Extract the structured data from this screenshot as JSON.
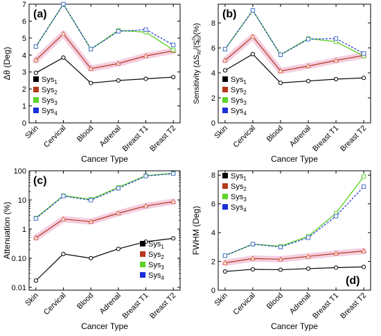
{
  "colors": {
    "sys1": "#000000",
    "sys2": "#b5391c",
    "sys3": "#5ed12b",
    "sys4": "#1a2fd8",
    "sys4_marker": "#4a6fd0",
    "sys2_marker": "#d86a4a",
    "glow": "#f2c6dc"
  },
  "chart_data": [
    {
      "type": "line",
      "panel_label": "(a)",
      "categories": [
        "Skin",
        "Cervical",
        "Blood",
        "Adrenal",
        "Breast T1",
        "Breast T2"
      ],
      "xlabel": "Cancer Type",
      "ylabel": "Δθ (Deg)",
      "ylim": [
        0,
        7
      ],
      "yticks": [
        "0",
        "1",
        "2",
        "3",
        "4",
        "5",
        "6",
        "7"
      ],
      "yscale": "linear",
      "legend_position": "bottom-left",
      "series": [
        {
          "name": "Sys",
          "sub": "1",
          "values": [
            2.95,
            3.85,
            2.35,
            2.5,
            2.6,
            2.7
          ]
        },
        {
          "name": "Sys",
          "sub": "2",
          "values": [
            3.7,
            5.25,
            3.2,
            3.5,
            3.95,
            4.25
          ]
        },
        {
          "name": "Sys",
          "sub": "3",
          "values": [
            4.5,
            7.0,
            4.35,
            5.45,
            5.35,
            4.3
          ]
        },
        {
          "name": "Sys",
          "sub": "4",
          "values": [
            4.5,
            7.0,
            4.35,
            5.4,
            5.5,
            4.6
          ]
        }
      ]
    },
    {
      "type": "line",
      "panel_label": "(b)",
      "categories": [
        "Skin",
        "Cervical",
        "Blood",
        "Adrenal",
        "Breast T1",
        "Breast T2"
      ],
      "xlabel": "Cancer Type",
      "ylabel": "Sensitivity (ΔS",
      "ylabel_sub": "RI",
      "ylabel_mid": "/(S",
      "ylabel_sup": "0",
      "ylabel_sub2": "RI",
      "ylabel_end": ")(%)",
      "ylim": [
        0,
        9.5
      ],
      "yticks": [
        "0",
        "2",
        "4",
        "6",
        "8"
      ],
      "ytick_values": [
        0,
        2,
        4,
        6,
        8
      ],
      "yscale": "linear",
      "legend_position": "bottom-left",
      "series": [
        {
          "name": "Sys",
          "sub": "1",
          "values": [
            4.2,
            5.5,
            3.2,
            3.35,
            3.5,
            3.6
          ]
        },
        {
          "name": "Sys",
          "sub": "2",
          "values": [
            5.0,
            6.9,
            4.15,
            4.55,
            5.0,
            5.4
          ]
        },
        {
          "name": "Sys",
          "sub": "3",
          "values": [
            5.9,
            9.0,
            5.45,
            6.75,
            6.5,
            5.35
          ]
        },
        {
          "name": "Sys",
          "sub": "4",
          "values": [
            5.9,
            9.0,
            5.45,
            6.7,
            6.75,
            5.55
          ]
        }
      ]
    },
    {
      "type": "line",
      "panel_label": "(c)",
      "categories": [
        "Skin",
        "Cervical",
        "Blood",
        "Adrenal",
        "Breast T1",
        "Breast T2"
      ],
      "xlabel": "Cancer Type",
      "ylabel": "Attenuation (%)",
      "ylim": [
        0.008,
        100
      ],
      "yticks": [
        "0.01",
        "0.10",
        "1",
        "10",
        "100"
      ],
      "ytick_values": [
        0.01,
        0.1,
        1,
        10,
        100
      ],
      "yscale": "log",
      "legend_position": "bottom-right",
      "series": [
        {
          "name": "Sys",
          "sub": "1",
          "values": [
            0.017,
            0.14,
            0.1,
            0.21,
            0.37,
            0.48
          ]
        },
        {
          "name": "Sys",
          "sub": "2",
          "values": [
            0.5,
            2.2,
            1.8,
            3.5,
            6.2,
            8.7
          ]
        },
        {
          "name": "Sys",
          "sub": "3",
          "values": [
            2.4,
            14,
            10.5,
            27,
            68,
            82
          ]
        },
        {
          "name": "Sys",
          "sub": "4",
          "values": [
            2.3,
            13.5,
            9.8,
            25,
            66,
            80
          ]
        }
      ]
    },
    {
      "type": "line",
      "panel_label": "(d)",
      "categories": [
        "Skin",
        "Cervical",
        "Blood",
        "Adrenal",
        "Breast T1",
        "Breast T2"
      ],
      "xlabel": "Cancer Type",
      "ylabel": "FWHM (Deg)",
      "ylim": [
        0,
        8.3
      ],
      "yticks": [
        "0",
        "2",
        "4",
        "6",
        "8"
      ],
      "ytick_values": [
        0,
        2,
        4,
        6,
        8
      ],
      "yscale": "linear",
      "legend_position": "top-left",
      "series": [
        {
          "name": "Sys",
          "sub": "1",
          "values": [
            1.3,
            1.45,
            1.42,
            1.5,
            1.57,
            1.62
          ]
        },
        {
          "name": "Sys",
          "sub": "2",
          "values": [
            1.9,
            2.2,
            2.15,
            2.35,
            2.55,
            2.72
          ]
        },
        {
          "name": "Sys",
          "sub": "3",
          "values": [
            2.4,
            3.2,
            3.05,
            3.75,
            5.35,
            7.9
          ]
        },
        {
          "name": "Sys",
          "sub": "4",
          "values": [
            2.4,
            3.2,
            3.0,
            3.65,
            5.15,
            7.2
          ]
        }
      ]
    }
  ]
}
